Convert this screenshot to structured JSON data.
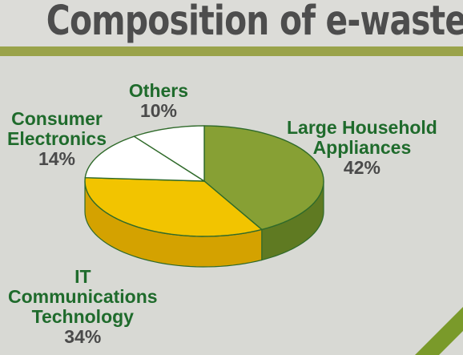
{
  "chart_data": {
    "type": "pie",
    "title": "Composition of e-waste",
    "slices": [
      {
        "label": [
          "Large Household",
          "Appliances"
        ],
        "value": 42,
        "value_label": "42%",
        "color": "#87a034",
        "side_color": "#5f7a22"
      },
      {
        "label": [
          "IT",
          "Communications",
          "Technology"
        ],
        "value": 34,
        "value_label": "34%",
        "color": "#f2c400",
        "side_color": "#d4a200"
      },
      {
        "label": [
          "Consumer",
          "Electronics"
        ],
        "value": 14,
        "value_label": "14%",
        "color": "#ffffff",
        "side_color": "#e6e6e6"
      },
      {
        "label": [
          "Others"
        ],
        "value": 10,
        "value_label": "10%",
        "color": "#ffffff",
        "side_color": "#e6e6e6"
      }
    ],
    "edge_color": "#2f6a2a",
    "label_color": "#1f6b2c",
    "value_color": "#4a4a4a"
  }
}
